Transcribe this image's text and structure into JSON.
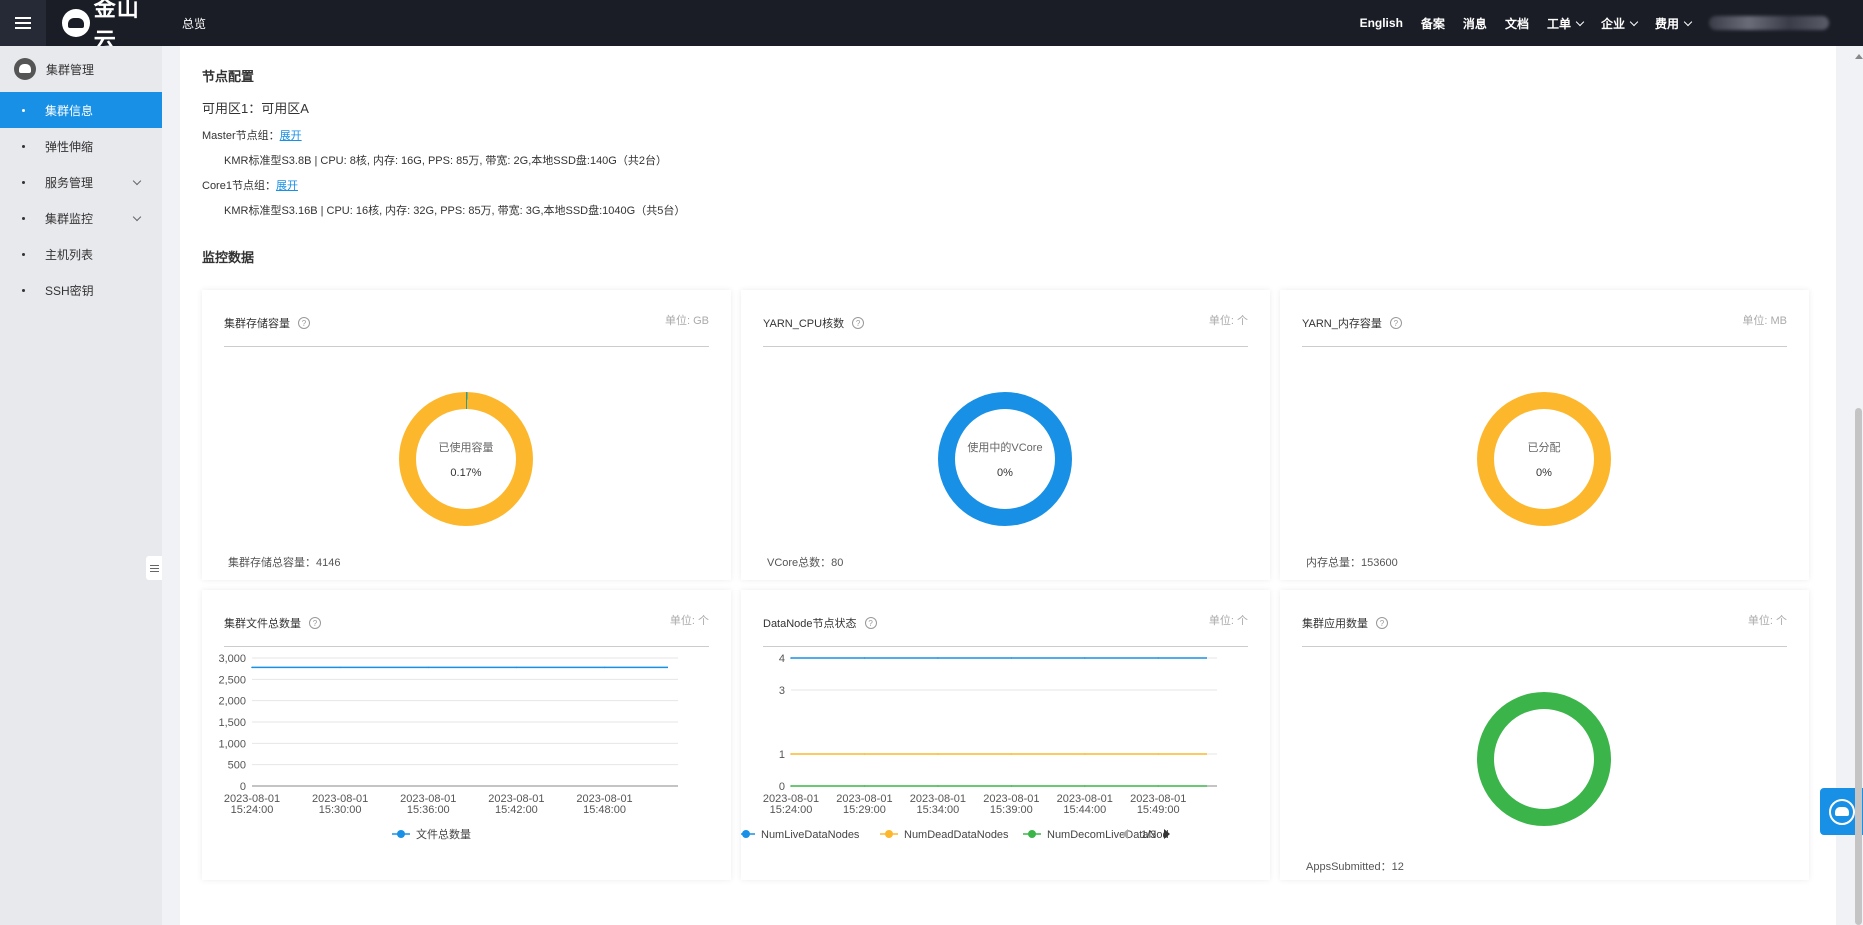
{
  "topbar": {
    "logo_text": "金山云",
    "overview": "总览",
    "links": [
      {
        "label": "English",
        "dropdown": false
      },
      {
        "label": "备案",
        "dropdown": false
      },
      {
        "label": "消息",
        "dropdown": false
      },
      {
        "label": "文档",
        "dropdown": false
      },
      {
        "label": "工单",
        "dropdown": true
      },
      {
        "label": "企业",
        "dropdown": true
      },
      {
        "label": "费用",
        "dropdown": true
      }
    ]
  },
  "sidebar": {
    "header": "集群管理",
    "items": [
      {
        "label": "集群信息",
        "active": true,
        "expandable": false
      },
      {
        "label": "弹性伸缩",
        "active": false,
        "expandable": false
      },
      {
        "label": "服务管理",
        "active": false,
        "expandable": true
      },
      {
        "label": "集群监控",
        "active": false,
        "expandable": true
      },
      {
        "label": "主机列表",
        "active": false,
        "expandable": false
      },
      {
        "label": "SSH密钥",
        "active": false,
        "expandable": false
      }
    ]
  },
  "node_config": {
    "title": "节点配置",
    "availability_zone": "可用区1：可用区A",
    "groups": [
      {
        "label": "Master节点组：",
        "expand": "展开",
        "spec": "KMR标准型S3.8B | CPU: 8核, 内存: 16G, PPS: 85万, 带宽: 2G,本地SSD盘:140G（共2台）"
      },
      {
        "label": "Core1节点组：",
        "expand": "展开",
        "spec": "KMR标准型S3.16B | CPU: 16核, 内存: 32G, PPS: 85万, 带宽: 3G,本地SSD盘:1040G（共5台）"
      }
    ]
  },
  "monitoring": {
    "title": "监控数据",
    "cards": [
      {
        "title": "集群存储容量",
        "unit": "单位:  GB",
        "center_label": "已使用容量",
        "center_value": "0.17%",
        "used_fraction": 0.0017,
        "ring_color": "#fdb72c",
        "used_color": "#2a9d8f",
        "footer": "集群存储总容量：4146"
      },
      {
        "title": "YARN_CPU核数",
        "unit": "单位:  个",
        "center_label": "使用中的VCore",
        "center_value": "0%",
        "used_fraction": 0,
        "ring_color": "#1890e6",
        "used_color": "#1890e6",
        "footer": "VCore总数：80"
      },
      {
        "title": "YARN_内存容量",
        "unit": "单位:  MB",
        "center_label": "已分配",
        "center_value": "0%",
        "used_fraction": 0,
        "ring_color": "#fdb72c",
        "used_color": "#fdb72c",
        "footer": "内存总量：153600"
      },
      {
        "title": "集群文件总数量",
        "unit": "单位:  个",
        "footer": ""
      },
      {
        "title": "DataNode节点状态",
        "unit": "单位:  个",
        "footer": ""
      },
      {
        "title": "集群应用数量",
        "unit": "单位:  个",
        "center_label": "",
        "center_value": "",
        "used_fraction": 0,
        "ring_color": "#3bb54a",
        "used_color": "#3bb54a",
        "footer": "AppsSubmitted：12"
      }
    ]
  },
  "chart_data": [
    {
      "type": "line",
      "title": "集群文件总数量",
      "x": [
        "2023-08-01 15:24:00",
        "2023-08-01 15:30:00",
        "2023-08-01 15:36:00",
        "2023-08-01 15:42:00",
        "2023-08-01 15:48:00"
      ],
      "x_range": [
        "15:24",
        "15:53"
      ],
      "ylim": [
        0,
        3000
      ],
      "yticks": [
        "0",
        "500",
        "1,000",
        "1,500",
        "2,000",
        "2,500",
        "3,000"
      ],
      "grid": true,
      "legend_position": "bottom",
      "series": [
        {
          "name": "文件总数量",
          "color": "#1890e6",
          "values": [
            2780,
            2780,
            2780,
            2780,
            2780
          ]
        }
      ]
    },
    {
      "type": "line",
      "title": "DataNode节点状态",
      "x": [
        "2023-08-01 15:24:00",
        "2023-08-01 15:29:00",
        "2023-08-01 15:34:00",
        "2023-08-01 15:39:00",
        "2023-08-01 15:44:00",
        "2023-08-01 15:49:00"
      ],
      "x_range": [
        "15:24",
        "15:53"
      ],
      "ylim": [
        0,
        4
      ],
      "yticks": [
        "0",
        "1",
        "3",
        "4"
      ],
      "grid": true,
      "legend_position": "bottom",
      "legend_page": "1/3",
      "series": [
        {
          "name": "NumLiveDataNodes",
          "color": "#1890e6",
          "values": [
            4,
            4,
            4,
            4,
            4,
            4
          ]
        },
        {
          "name": "NumDeadDataNodes",
          "color": "#fdb72c",
          "values": [
            1,
            1,
            1,
            1,
            1,
            1
          ]
        },
        {
          "name": "NumDecomLiveDataNod",
          "color": "#3bb54a",
          "values": [
            0,
            0,
            0,
            0,
            0,
            0
          ]
        }
      ]
    }
  ]
}
